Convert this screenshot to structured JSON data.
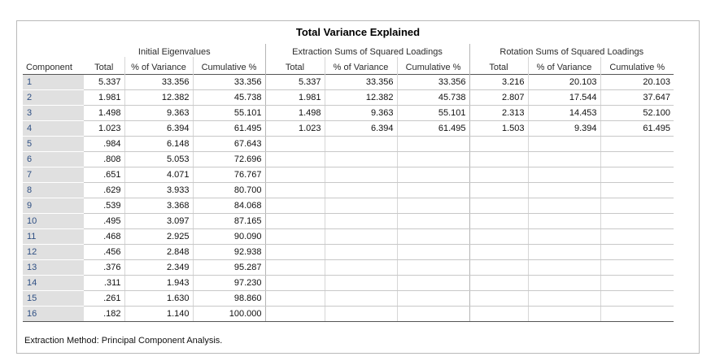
{
  "title": "Total Variance Explained",
  "groups": {
    "initial": "Initial Eigenvalues",
    "extraction": "Extraction Sums of Squared Loadings",
    "rotation": "Rotation Sums of Squared Loadings"
  },
  "columns": {
    "component": "Component",
    "total": "Total",
    "pct": "% of Variance",
    "cum": "Cumulative %"
  },
  "rows": [
    {
      "c": "1",
      "i": [
        "5.337",
        "33.356",
        "33.356"
      ],
      "e": [
        "5.337",
        "33.356",
        "33.356"
      ],
      "r": [
        "3.216",
        "20.103",
        "20.103"
      ]
    },
    {
      "c": "2",
      "i": [
        "1.981",
        "12.382",
        "45.738"
      ],
      "e": [
        "1.981",
        "12.382",
        "45.738"
      ],
      "r": [
        "2.807",
        "17.544",
        "37.647"
      ]
    },
    {
      "c": "3",
      "i": [
        "1.498",
        "9.363",
        "55.101"
      ],
      "e": [
        "1.498",
        "9.363",
        "55.101"
      ],
      "r": [
        "2.313",
        "14.453",
        "52.100"
      ]
    },
    {
      "c": "4",
      "i": [
        "1.023",
        "6.394",
        "61.495"
      ],
      "e": [
        "1.023",
        "6.394",
        "61.495"
      ],
      "r": [
        "1.503",
        "9.394",
        "61.495"
      ]
    },
    {
      "c": "5",
      "i": [
        ".984",
        "6.148",
        "67.643"
      ],
      "e": [
        "",
        "",
        ""
      ],
      "r": [
        "",
        "",
        ""
      ]
    },
    {
      "c": "6",
      "i": [
        ".808",
        "5.053",
        "72.696"
      ],
      "e": [
        "",
        "",
        ""
      ],
      "r": [
        "",
        "",
        ""
      ]
    },
    {
      "c": "7",
      "i": [
        ".651",
        "4.071",
        "76.767"
      ],
      "e": [
        "",
        "",
        ""
      ],
      "r": [
        "",
        "",
        ""
      ]
    },
    {
      "c": "8",
      "i": [
        ".629",
        "3.933",
        "80.700"
      ],
      "e": [
        "",
        "",
        ""
      ],
      "r": [
        "",
        "",
        ""
      ]
    },
    {
      "c": "9",
      "i": [
        ".539",
        "3.368",
        "84.068"
      ],
      "e": [
        "",
        "",
        ""
      ],
      "r": [
        "",
        "",
        ""
      ]
    },
    {
      "c": "10",
      "i": [
        ".495",
        "3.097",
        "87.165"
      ],
      "e": [
        "",
        "",
        ""
      ],
      "r": [
        "",
        "",
        ""
      ]
    },
    {
      "c": "11",
      "i": [
        ".468",
        "2.925",
        "90.090"
      ],
      "e": [
        "",
        "",
        ""
      ],
      "r": [
        "",
        "",
        ""
      ]
    },
    {
      "c": "12",
      "i": [
        ".456",
        "2.848",
        "92.938"
      ],
      "e": [
        "",
        "",
        ""
      ],
      "r": [
        "",
        "",
        ""
      ]
    },
    {
      "c": "13",
      "i": [
        ".376",
        "2.349",
        "95.287"
      ],
      "e": [
        "",
        "",
        ""
      ],
      "r": [
        "",
        "",
        ""
      ]
    },
    {
      "c": "14",
      "i": [
        ".311",
        "1.943",
        "97.230"
      ],
      "e": [
        "",
        "",
        ""
      ],
      "r": [
        "",
        "",
        ""
      ]
    },
    {
      "c": "15",
      "i": [
        ".261",
        "1.630",
        "98.860"
      ],
      "e": [
        "",
        "",
        ""
      ],
      "r": [
        "",
        "",
        ""
      ]
    },
    {
      "c": "16",
      "i": [
        ".182",
        "1.140",
        "100.000"
      ],
      "e": [
        "",
        "",
        ""
      ],
      "r": [
        "",
        "",
        ""
      ]
    }
  ],
  "footnote": "Extraction Method: Principal Component Analysis."
}
